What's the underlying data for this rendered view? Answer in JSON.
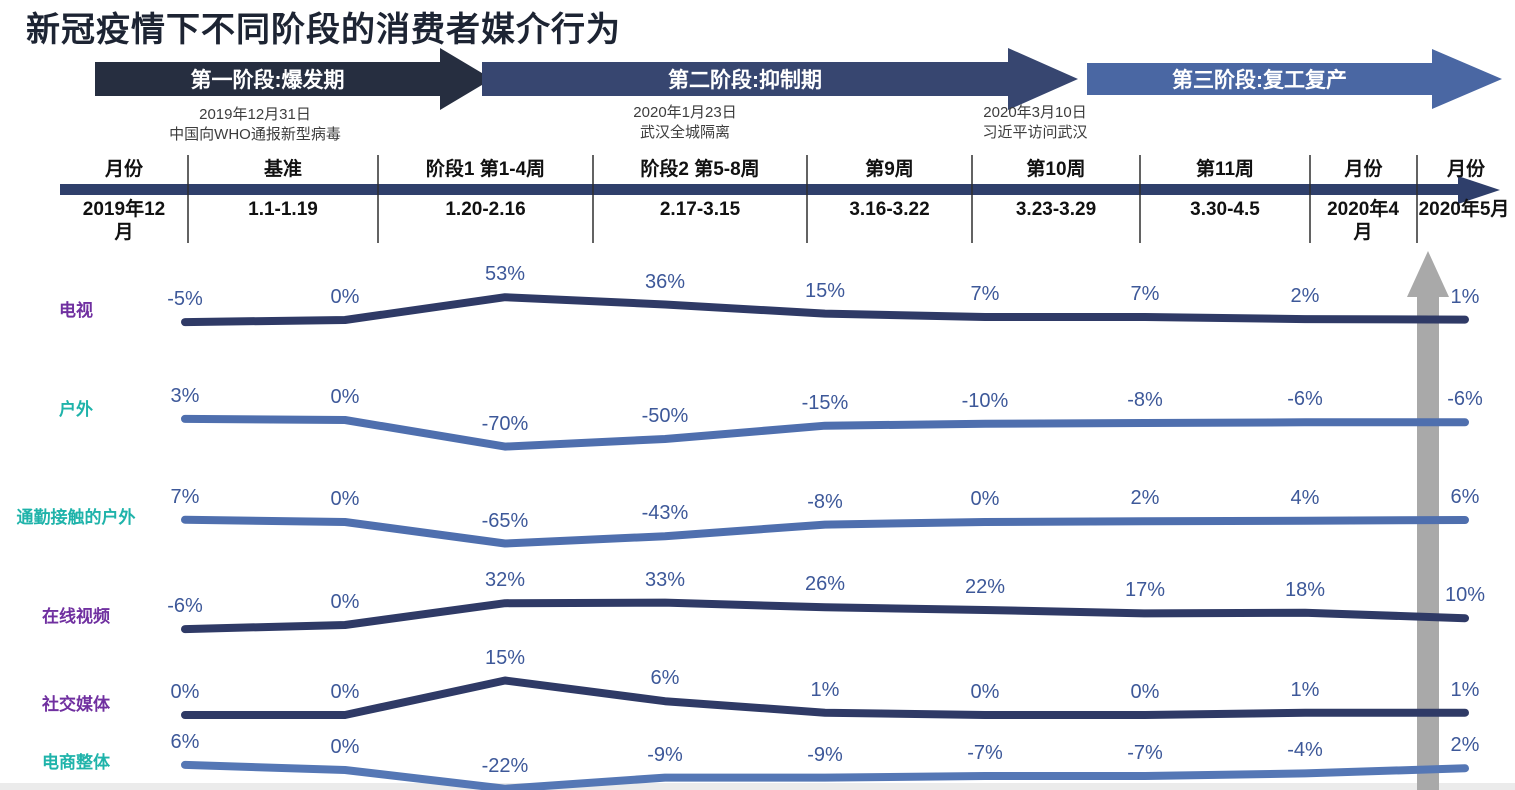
{
  "title": "新冠疫情下不同阶段的消费者媒介行为",
  "stages": [
    {
      "label": "第一阶段:爆发期",
      "color": "#262e40"
    },
    {
      "label": "第二阶段:抑制期",
      "color": "#374670"
    },
    {
      "label": "第三阶段:复工复产",
      "color": "#4a67a3"
    }
  ],
  "milestones": [
    {
      "date": "2019年12月31日",
      "event": "中国向WHO通报新型病毒"
    },
    {
      "date": "2020年1月23日",
      "event": "武汉全城隔离"
    },
    {
      "date": "2020年3月10日",
      "event": "习近平访问武汉"
    }
  ],
  "timeline": {
    "headers": [
      "月份",
      "基准",
      "阶段1 第1-4周",
      "阶段2 第5-8周",
      "第9周",
      "第10周",
      "第11周",
      "月份",
      "月份"
    ],
    "dates": [
      "2019年12月",
      "1.1-1.19",
      "1.20-2.16",
      "2.17-3.15",
      "3.16-3.22",
      "3.23-3.29",
      "3.30-4.5",
      "2020年4月",
      "2020年5月"
    ]
  },
  "chart_data": {
    "type": "line",
    "unit": "%",
    "categories": [
      "2019年12月",
      "1.1-1.19",
      "1.20-2.16",
      "2.17-3.15",
      "3.16-3.22",
      "3.23-3.29",
      "3.30-4.5",
      "2020年4月",
      "2020年5月"
    ],
    "series": [
      {
        "name": "电视",
        "name_color": "#7030a0",
        "line_color": "#2f3a66",
        "values": [
          -5,
          0,
          53,
          36,
          15,
          7,
          7,
          2,
          1
        ]
      },
      {
        "name": "户外",
        "name_color": "#1fb3aa",
        "line_color": "#4f6fae",
        "values": [
          3,
          0,
          -70,
          -50,
          -15,
          -10,
          -8,
          -6,
          -6
        ]
      },
      {
        "name": "通勤接触的户外",
        "name_color": "#1fb3aa",
        "line_color": "#4f6fae",
        "values": [
          7,
          0,
          -65,
          -43,
          -8,
          0,
          2,
          4,
          6
        ]
      },
      {
        "name": "在线视频",
        "name_color": "#7030a0",
        "line_color": "#2f3a66",
        "values": [
          -6,
          0,
          32,
          33,
          26,
          22,
          17,
          18,
          10
        ]
      },
      {
        "name": "社交媒体",
        "name_color": "#7030a0",
        "line_color": "#2f3a66",
        "values": [
          0,
          0,
          15,
          6,
          1,
          0,
          0,
          1,
          1
        ]
      },
      {
        "name": "电商整体",
        "name_color": "#1fb3aa",
        "line_color": "#5577b5",
        "values": [
          6,
          0,
          -22,
          -9,
          -9,
          -7,
          -7,
          -4,
          2
        ]
      }
    ],
    "legend_position": "left-row-labels",
    "grid": false
  },
  "colors": {
    "timeline_bar": "#2f3f6b",
    "data_label": "#3d5899",
    "divider": "#2f2f2f",
    "gray_arrow": "#a9a9a9",
    "bottom_strip": "#ebebeb"
  }
}
